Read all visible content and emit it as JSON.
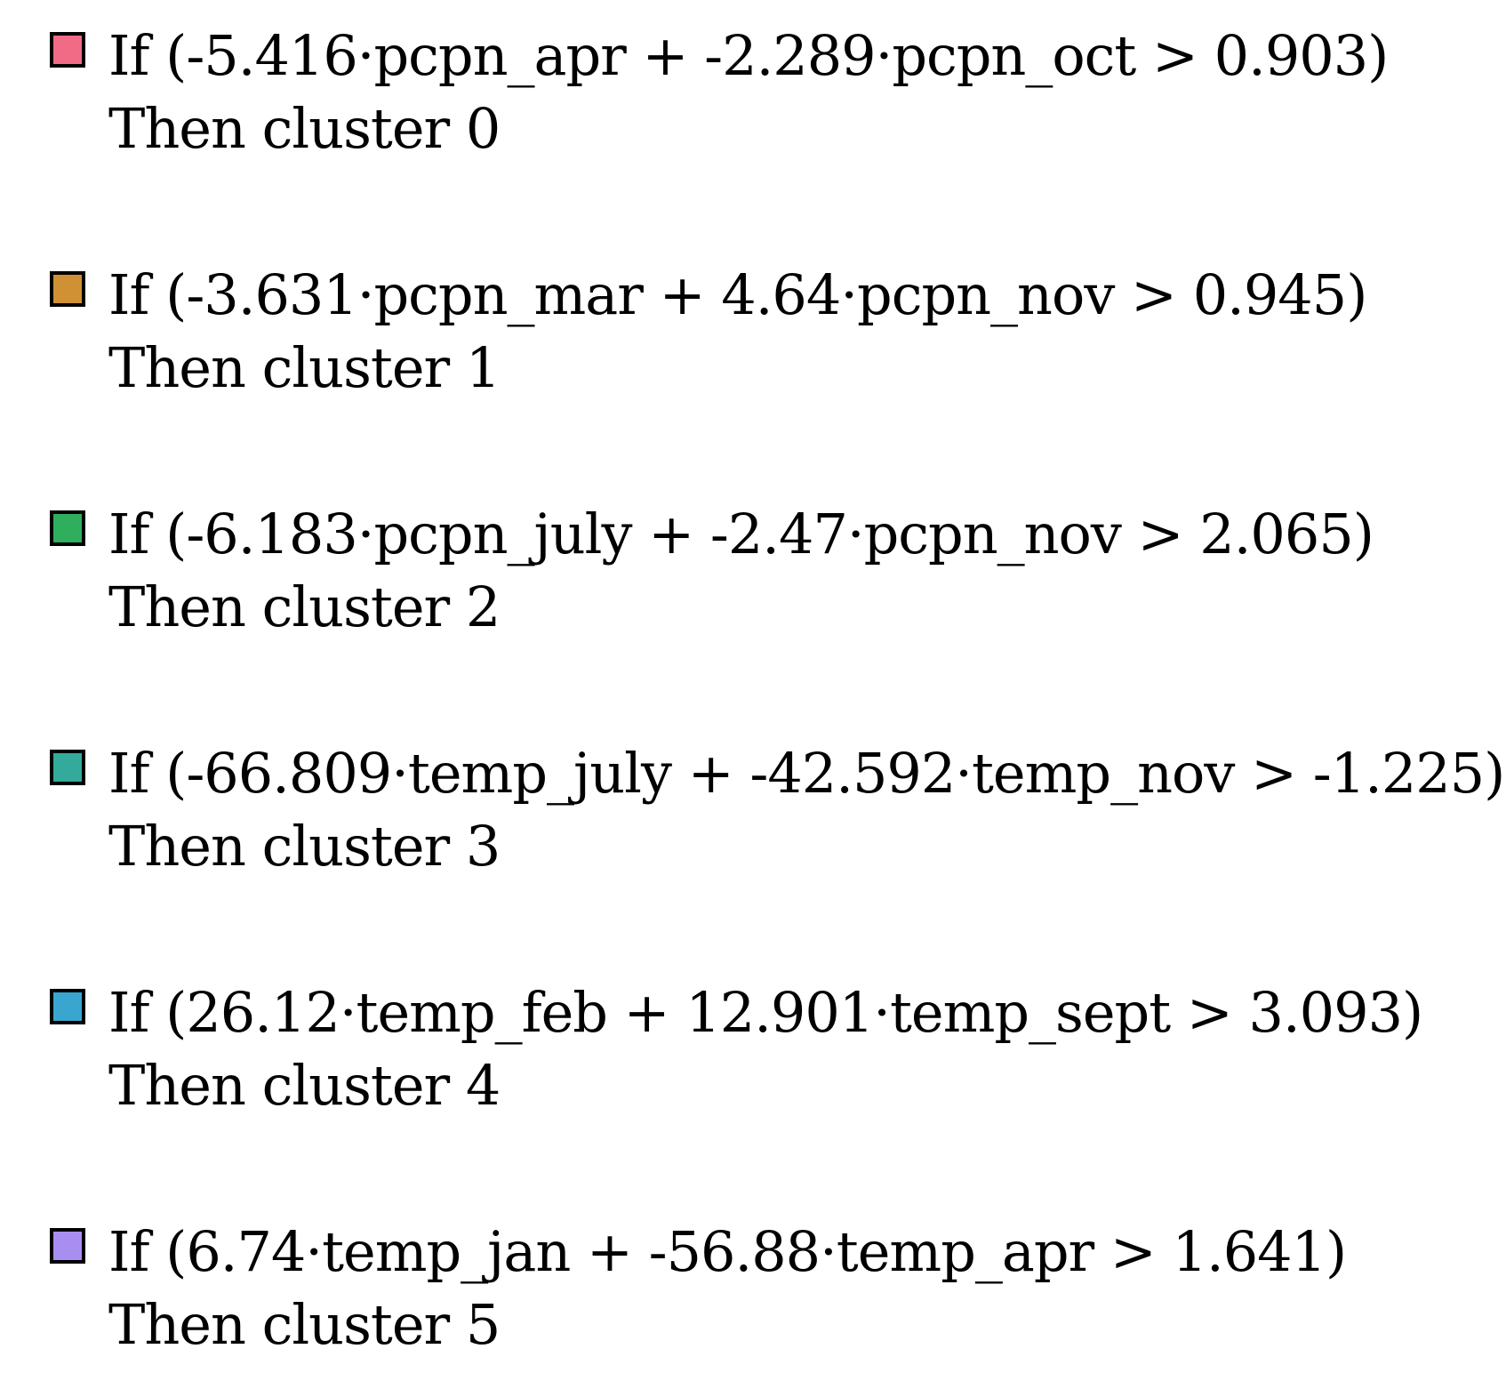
{
  "legend": {
    "entries": [
      {
        "color": "#f26b86",
        "rule": "If (-5.416·pcpn_apr + -2.289·pcpn_oct > 0.903)",
        "then": "Then cluster 0"
      },
      {
        "color": "#cf9134",
        "rule": "If (-3.631·pcpn_mar + 4.64·pcpn_nov > 0.945)",
        "then": "Then cluster 1"
      },
      {
        "color": "#2fae5e",
        "rule": "If (-6.183·pcpn_july + -2.47·pcpn_nov > 2.065)",
        "then": "Then cluster 2"
      },
      {
        "color": "#33aa9c",
        "rule": "If (-66.809·temp_july + -42.592·temp_nov > -1.225)",
        "then": "Then cluster 3"
      },
      {
        "color": "#38a6cf",
        "rule": "If (26.12·temp_feb + 12.901·temp_sept > 3.093)",
        "then": "Then cluster 4"
      },
      {
        "color": "#a98ef2",
        "rule": "If (6.74·temp_jan + -56.88·temp_apr > 1.641)",
        "then": "Then cluster 5"
      }
    ]
  }
}
